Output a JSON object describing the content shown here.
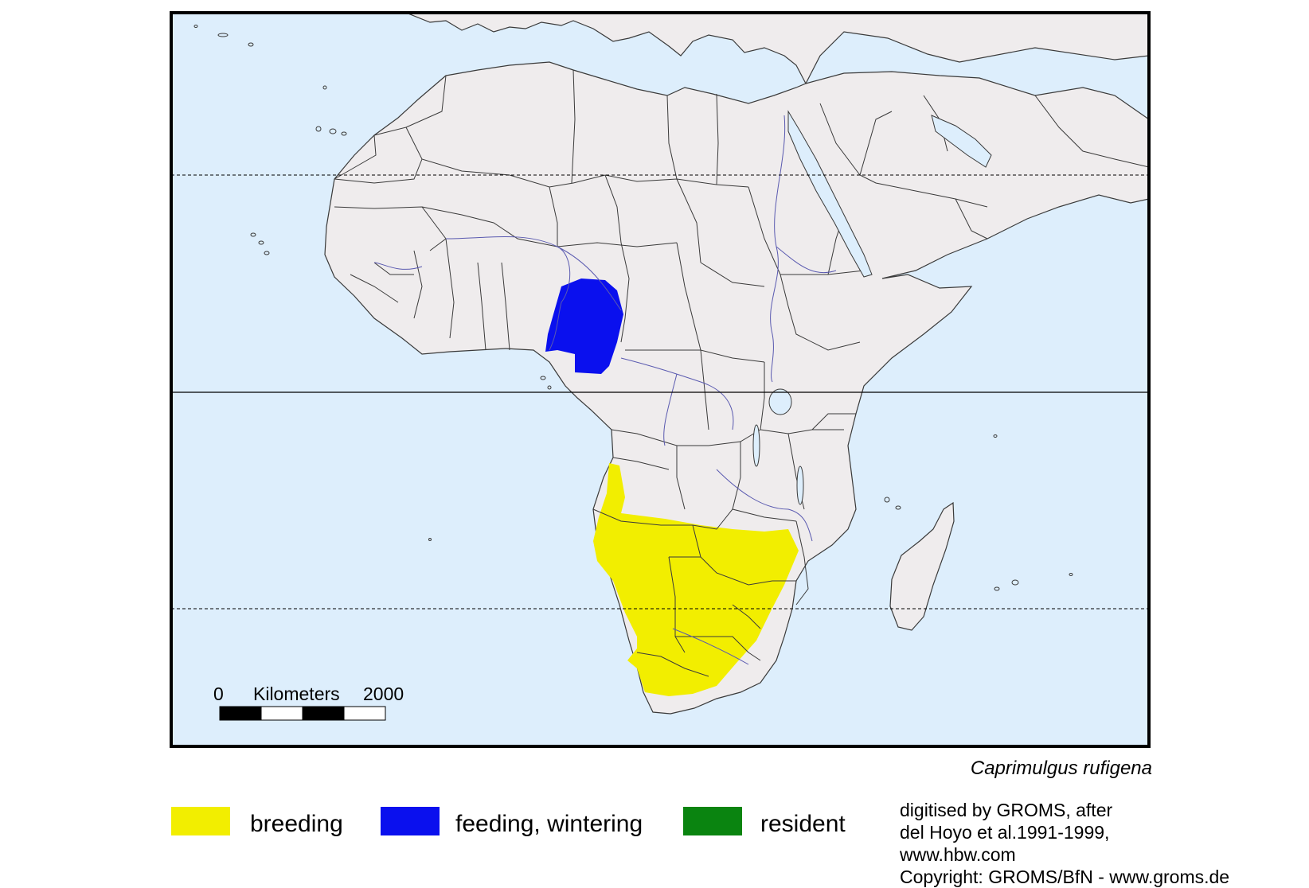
{
  "map": {
    "region": "Africa",
    "colors": {
      "ocean": "#ddeefc",
      "land": "#efeced",
      "border": "#3a3a3a",
      "river": "#5a5ab0",
      "frame": "#000000"
    },
    "scale_bar": {
      "zero_label": "0",
      "unit_label": "Kilometers",
      "max_label": "2000"
    }
  },
  "species": {
    "name": "Caprimulgus rufigena"
  },
  "legend": {
    "items": [
      {
        "label": "breeding",
        "color": "#f2ee00"
      },
      {
        "label": "feeding, wintering",
        "color": "#0a10ee"
      },
      {
        "label": "resident",
        "color": "#0a8410"
      }
    ]
  },
  "credits": {
    "line1": "digitised by GROMS, after",
    "line2": "del Hoyo et al.1991-1999,",
    "line3": "www.hbw.com",
    "line4": "Copyright: GROMS/BfN - www.groms.de"
  }
}
